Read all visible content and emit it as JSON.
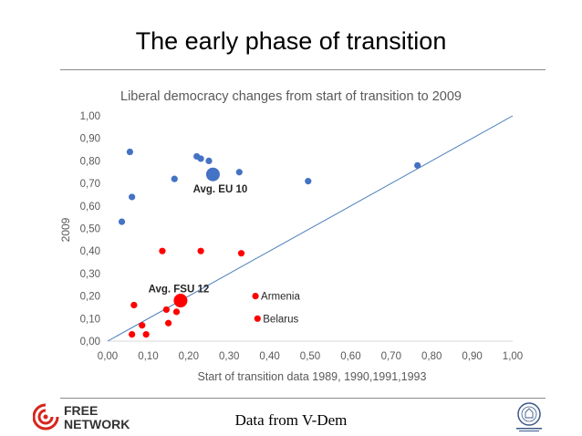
{
  "slide": {
    "title": "The early phase of transition",
    "footer": "Data from V-Dem"
  },
  "logo": {
    "line1": "FREE",
    "line2": "NETWORK",
    "icon": "free-network-logo-icon",
    "color": "#d7261e"
  },
  "seal": {
    "icon": "university-seal-icon"
  },
  "chart_data": {
    "type": "scatter",
    "title": "Liberal democracy changes from start of transition to 2009",
    "xlabel": "Start of transition data 1989, 1990,1991,1993",
    "ylabel": "2009",
    "xlim": [
      0,
      1
    ],
    "ylim": [
      0,
      1
    ],
    "xticks": [
      "0,00",
      "0,10",
      "0,20",
      "0,30",
      "0,40",
      "0,50",
      "0,60",
      "0,70",
      "0,80",
      "0,90",
      "1,00"
    ],
    "yticks": [
      "0,00",
      "0,10",
      "0,20",
      "0,30",
      "0,40",
      "0,50",
      "0,60",
      "0,70",
      "0,80",
      "0,90",
      "1,00"
    ],
    "grid": false,
    "reference_line": {
      "from": [
        0,
        0
      ],
      "to": [
        1,
        1
      ],
      "color": "#4a7ebb"
    },
    "colors": {
      "eu": "#4472c4",
      "fsu": "#ff0000"
    },
    "series": [
      {
        "group": "eu",
        "points": [
          {
            "x": 0.055,
            "y": 0.84
          },
          {
            "x": 0.06,
            "y": 0.64
          },
          {
            "x": 0.035,
            "y": 0.53
          },
          {
            "x": 0.165,
            "y": 0.72
          },
          {
            "x": 0.22,
            "y": 0.82
          },
          {
            "x": 0.23,
            "y": 0.81
          },
          {
            "x": 0.25,
            "y": 0.8
          },
          {
            "x": 0.325,
            "y": 0.75
          },
          {
            "x": 0.495,
            "y": 0.71
          },
          {
            "x": 0.765,
            "y": 0.78
          }
        ]
      },
      {
        "group": "fsu",
        "points": [
          {
            "x": 0.135,
            "y": 0.4
          },
          {
            "x": 0.23,
            "y": 0.4
          },
          {
            "x": 0.33,
            "y": 0.39
          },
          {
            "x": 0.065,
            "y": 0.16
          },
          {
            "x": 0.085,
            "y": 0.07
          },
          {
            "x": 0.095,
            "y": 0.03
          },
          {
            "x": 0.06,
            "y": 0.03
          },
          {
            "x": 0.145,
            "y": 0.14
          },
          {
            "x": 0.15,
            "y": 0.08
          },
          {
            "x": 0.17,
            "y": 0.13
          },
          {
            "x": 0.365,
            "y": 0.2
          },
          {
            "x": 0.37,
            "y": 0.1
          }
        ]
      }
    ],
    "averages": [
      {
        "group": "eu",
        "label": "Avg. EU 10",
        "x": 0.26,
        "y": 0.74
      },
      {
        "group": "fsu",
        "label": "Avg. FSU 12",
        "x": 0.18,
        "y": 0.18
      }
    ],
    "annotations": [
      {
        "label": "Armenia",
        "x": 0.365,
        "y": 0.2
      },
      {
        "label": "Belarus",
        "x": 0.37,
        "y": 0.1
      }
    ]
  }
}
